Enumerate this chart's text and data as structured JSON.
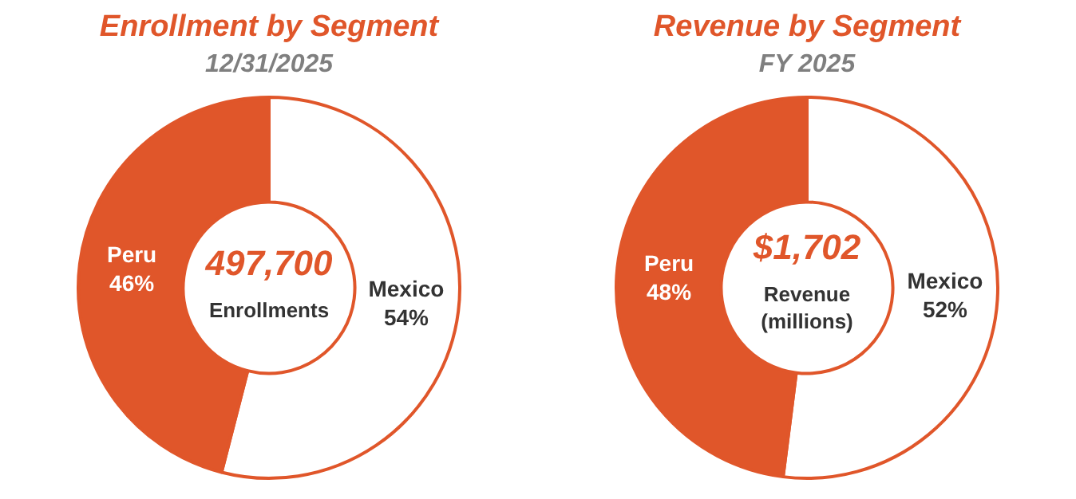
{
  "chart_data": [
    {
      "type": "donut",
      "title": "Enrollment by Segment",
      "subtitle": "12/31/2025",
      "categories": [
        "Mexico",
        "Peru"
      ],
      "values": [
        54,
        46
      ],
      "colors": [
        "#ffffff",
        "#e0562a"
      ],
      "value_labels": [
        "54%",
        "46%"
      ],
      "annotations": [
        "497,700",
        "Enrollments"
      ],
      "legend": false
    },
    {
      "type": "donut",
      "title": "Revenue by Segment",
      "subtitle": "FY 2025",
      "categories": [
        "Mexico",
        "Peru"
      ],
      "values": [
        52,
        48
      ],
      "colors": [
        "#ffffff",
        "#e0562a"
      ],
      "value_labels": [
        "52%",
        "48%"
      ],
      "annotations": [
        "$1,702",
        "Revenue",
        "(millions)"
      ],
      "legend": false
    }
  ]
}
